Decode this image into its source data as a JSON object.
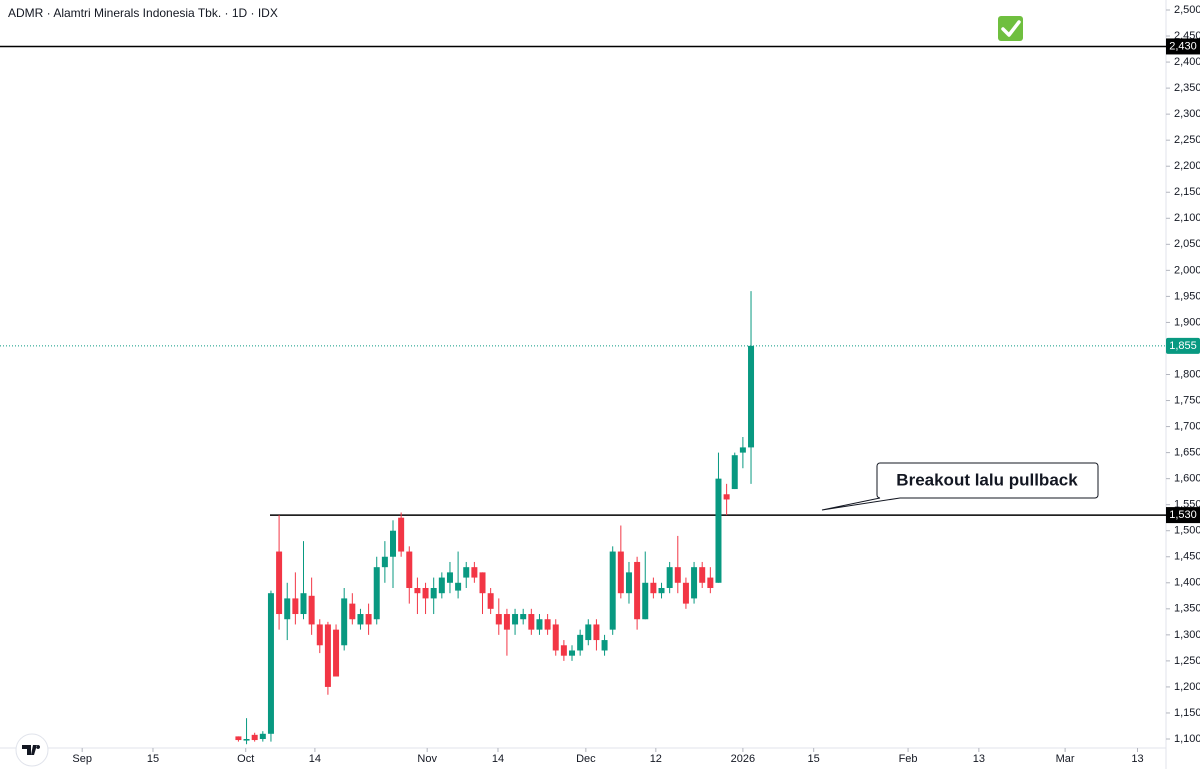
{
  "chart_data": {
    "type": "candlestick",
    "title": "ADMR · Alamtri Minerals Indonesia Tbk. · 1D · IDX",
    "up_color": "#089981",
    "down_color": "#f23645",
    "open": [
      1105,
      1097,
      1108,
      1100,
      1110,
      1460,
      1330,
      1370,
      1340,
      1375,
      1320,
      1320,
      1310,
      1280,
      1360,
      1320,
      1340,
      1330,
      1430,
      1450,
      1525,
      1460,
      1390,
      1390,
      1370,
      1380,
      1400,
      1385,
      1410,
      1430,
      1420,
      1380,
      1340,
      1340,
      1320,
      1330,
      1340,
      1310,
      1330,
      1320,
      1280,
      1260,
      1270,
      1290,
      1320,
      1270,
      1310,
      1460,
      1380,
      1440,
      1330,
      1400,
      1380,
      1390,
      1430,
      1400,
      1370,
      1430,
      1410,
      1400,
      1570,
      1580,
      1650,
      1660
    ],
    "high": [
      1105,
      1140,
      1112,
      1115,
      1385,
      1530,
      1400,
      1420,
      1480,
      1410,
      1330,
      1325,
      1320,
      1390,
      1380,
      1350,
      1360,
      1450,
      1480,
      1520,
      1535,
      1470,
      1410,
      1400,
      1410,
      1420,
      1440,
      1460,
      1440,
      1440,
      1420,
      1390,
      1370,
      1350,
      1350,
      1350,
      1350,
      1340,
      1340,
      1330,
      1290,
      1280,
      1310,
      1330,
      1330,
      1300,
      1470,
      1510,
      1440,
      1450,
      1460,
      1410,
      1400,
      1440,
      1490,
      1410,
      1440,
      1440,
      1430,
      1650,
      1590,
      1650,
      1680,
      1960
    ],
    "low": [
      1095,
      1090,
      1095,
      1095,
      1095,
      1310,
      1290,
      1320,
      1330,
      1300,
      1265,
      1185,
      1220,
      1270,
      1320,
      1310,
      1300,
      1320,
      1400,
      1390,
      1450,
      1360,
      1340,
      1340,
      1340,
      1370,
      1380,
      1370,
      1390,
      1400,
      1340,
      1340,
      1300,
      1260,
      1300,
      1320,
      1300,
      1300,
      1300,
      1260,
      1250,
      1250,
      1260,
      1280,
      1270,
      1260,
      1300,
      1370,
      1360,
      1310,
      1330,
      1370,
      1370,
      1380,
      1380,
      1350,
      1360,
      1390,
      1380,
      1400,
      1530,
      1580,
      1620,
      1590
    ],
    "close": [
      1098,
      1100,
      1098,
      1110,
      1380,
      1340,
      1370,
      1340,
      1380,
      1320,
      1280,
      1200,
      1220,
      1370,
      1330,
      1340,
      1320,
      1430,
      1450,
      1500,
      1460,
      1390,
      1380,
      1370,
      1390,
      1410,
      1420,
      1400,
      1430,
      1410,
      1380,
      1350,
      1320,
      1310,
      1340,
      1340,
      1310,
      1330,
      1310,
      1270,
      1260,
      1270,
      1300,
      1320,
      1290,
      1290,
      1460,
      1380,
      1420,
      1330,
      1400,
      1380,
      1390,
      1430,
      1400,
      1360,
      1430,
      1400,
      1390,
      1600,
      1560,
      1645,
      1660,
      1855
    ],
    "ylim": [
      1100,
      2500
    ],
    "yticks": [
      {
        "value": 1100,
        "label": "1,100"
      },
      {
        "value": 1150,
        "label": "1,150"
      },
      {
        "value": 1200,
        "label": "1,200"
      },
      {
        "value": 1250,
        "label": "1,250"
      },
      {
        "value": 1300,
        "label": "1,300"
      },
      {
        "value": 1350,
        "label": "1,350"
      },
      {
        "value": 1400,
        "label": "1,400"
      },
      {
        "value": 1450,
        "label": "1,450"
      },
      {
        "value": 1500,
        "label": "1,500"
      },
      {
        "value": 1550,
        "label": "1,550"
      },
      {
        "value": 1600,
        "label": "1,600"
      },
      {
        "value": 1650,
        "label": "1,650"
      },
      {
        "value": 1700,
        "label": "1,700"
      },
      {
        "value": 1750,
        "label": "1,750"
      },
      {
        "value": 1800,
        "label": "1,800"
      },
      {
        "value": 1850,
        "label": "1,850"
      },
      {
        "value": 1900,
        "label": "1,900"
      },
      {
        "value": 1950,
        "label": "1,950"
      },
      {
        "value": 2000,
        "label": "2,000"
      },
      {
        "value": 2050,
        "label": "2,050"
      },
      {
        "value": 2100,
        "label": "2,100"
      },
      {
        "value": 2150,
        "label": "2,150"
      },
      {
        "value": 2200,
        "label": "2,200"
      },
      {
        "value": 2250,
        "label": "2,250"
      },
      {
        "value": 2300,
        "label": "2,300"
      },
      {
        "value": 2350,
        "label": "2,350"
      },
      {
        "value": 2400,
        "label": "2,400"
      },
      {
        "value": 2450,
        "label": "2,450"
      },
      {
        "value": 2500,
        "label": "2,500"
      }
    ],
    "xlim": [
      -29.3,
      114.0
    ],
    "xticks": [
      {
        "value": -19.2,
        "label": "Sep"
      },
      {
        "value": -10.5,
        "label": "15"
      },
      {
        "value": 0.9,
        "label": "Oct"
      },
      {
        "value": 9.4,
        "label": "14"
      },
      {
        "value": 23.2,
        "label": "Nov"
      },
      {
        "value": 31.9,
        "label": "14"
      },
      {
        "value": 42.7,
        "label": "Dec"
      },
      {
        "value": 51.3,
        "label": "12"
      },
      {
        "value": 62.0,
        "label": "2026"
      },
      {
        "value": 70.7,
        "label": "15"
      },
      {
        "value": 82.3,
        "label": "Feb"
      },
      {
        "value": 91.0,
        "label": "13"
      },
      {
        "value": 101.6,
        "label": "Mar"
      },
      {
        "value": 110.5,
        "label": "13"
      }
    ],
    "hlines": [
      {
        "value": 2430,
        "label": "2,430"
      },
      {
        "value": 1530,
        "label": "1,530"
      }
    ],
    "last_price": {
      "value": 1855,
      "label": "1,855",
      "color": "#089981"
    },
    "annotation": "Breakout lalu pullback"
  }
}
